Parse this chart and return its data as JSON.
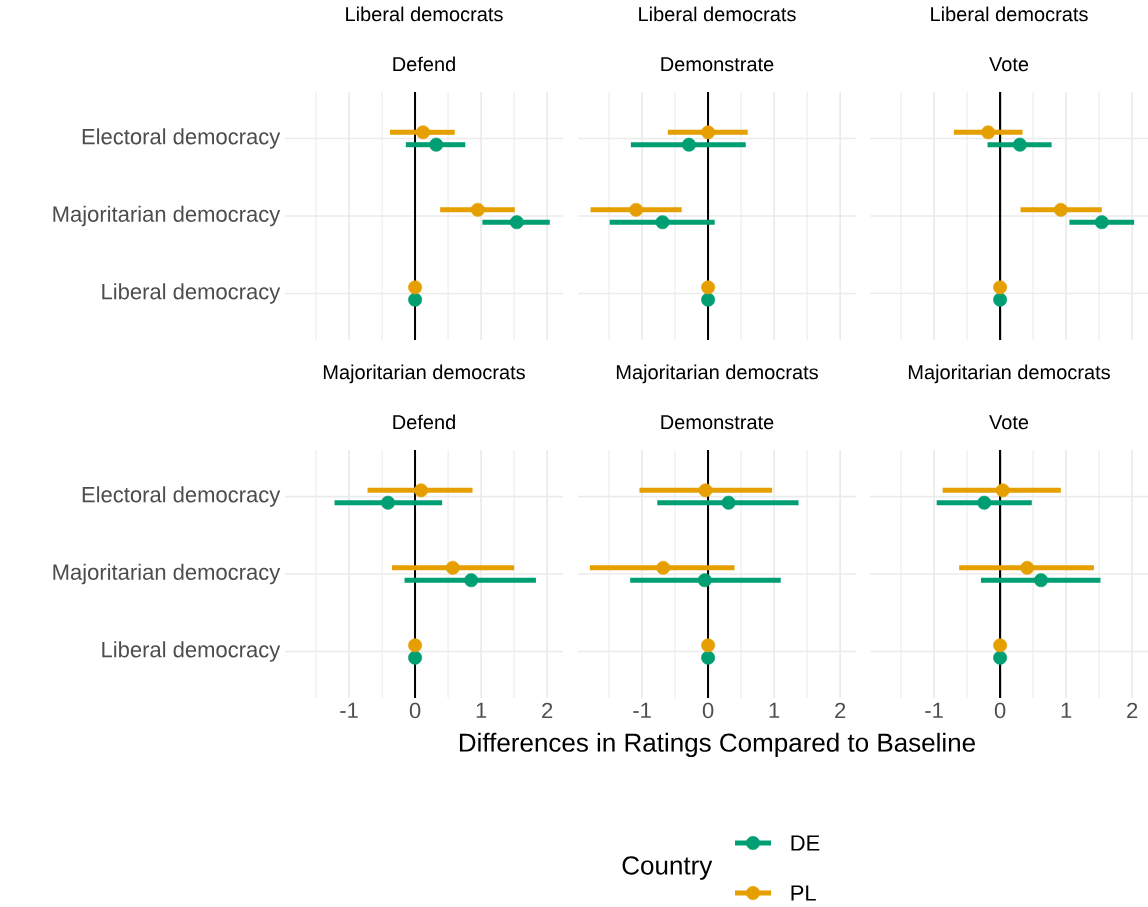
{
  "chart_data": [
    {
      "type": "scatter",
      "orientation": "horizontal",
      "title": "Liberal democrats",
      "subtitle": "Defend",
      "categories": [
        "Electoral democracy",
        "Majoritarian democracy",
        "Liberal democracy"
      ],
      "xlim": [
        -1.97,
        2.24
      ],
      "xticks": [
        {
          "value": -1.5,
          "label": null
        },
        -1,
        {
          "value": -0.5,
          "label": null
        },
        0,
        {
          "value": 0.5,
          "label": null
        },
        1,
        {
          "value": 1.5,
          "label": null
        },
        2
      ],
      "grid": true,
      "marker": "circle",
      "tick_labels": "y",
      "ref_lines": [
        {
          "axis": "x",
          "value": 0,
          "color": "#000000"
        }
      ],
      "series": [
        {
          "color": "#009e73",
          "values": [
            0.32,
            1.54,
            0
          ],
          "errors": [
            [
              -0.14,
              0.76
            ],
            [
              1.02,
              2.04
            ],
            null
          ]
        },
        {
          "color": "#e69f00",
          "values": [
            0.12,
            0.95,
            0
          ],
          "errors": [
            [
              -0.38,
              0.6
            ],
            [
              0.38,
              1.51
            ],
            null
          ]
        }
      ]
    },
    {
      "type": "scatter",
      "orientation": "horizontal",
      "title": "Liberal democrats",
      "subtitle": "Demonstrate",
      "categories": [
        null,
        null,
        null
      ],
      "xlim": [
        -1.97,
        2.24
      ],
      "xticks": [
        {
          "value": -1.5,
          "label": null
        },
        -1,
        {
          "value": -0.5,
          "label": null
        },
        0,
        {
          "value": 0.5,
          "label": null
        },
        1,
        {
          "value": 1.5,
          "label": null
        },
        2
      ],
      "grid": true,
      "marker": "circle",
      "tick_labels": false,
      "ref_lines": [
        {
          "axis": "x",
          "value": 0,
          "color": "#000000"
        }
      ],
      "series": [
        {
          "color": "#009e73",
          "values": [
            -0.29,
            -0.69,
            0
          ],
          "errors": [
            [
              -1.17,
              0.57
            ],
            [
              -1.49,
              0.1
            ],
            null
          ]
        },
        {
          "color": "#e69f00",
          "values": [
            0.0,
            -1.09,
            0
          ],
          "errors": [
            [
              -0.61,
              0.6
            ],
            [
              -1.78,
              -0.4
            ],
            null
          ]
        }
      ]
    },
    {
      "type": "scatter",
      "orientation": "horizontal",
      "title": "Liberal democrats",
      "subtitle": "Vote",
      "categories": [
        null,
        null,
        null
      ],
      "xlim": [
        -1.97,
        2.24
      ],
      "xticks": [
        {
          "value": -1.5,
          "label": null
        },
        -1,
        {
          "value": -0.5,
          "label": null
        },
        0,
        {
          "value": 0.5,
          "label": null
        },
        1,
        {
          "value": 1.5,
          "label": null
        },
        2
      ],
      "grid": true,
      "marker": "circle",
      "tick_labels": false,
      "ref_lines": [
        {
          "axis": "x",
          "value": 0,
          "color": "#000000"
        }
      ],
      "series": [
        {
          "color": "#009e73",
          "values": [
            0.3,
            1.54,
            0
          ],
          "errors": [
            [
              -0.19,
              0.78
            ],
            [
              1.05,
              2.03
            ],
            null
          ]
        },
        {
          "color": "#e69f00",
          "values": [
            -0.18,
            0.92,
            0
          ],
          "errors": [
            [
              -0.7,
              0.34
            ],
            [
              0.31,
              1.54
            ],
            null
          ]
        }
      ]
    },
    {
      "type": "scatter",
      "orientation": "horizontal",
      "title": "Majoritarian democrats",
      "subtitle": "Defend",
      "categories": [
        "Electoral democracy",
        "Majoritarian democracy",
        "Liberal democracy"
      ],
      "xlim": [
        -1.97,
        2.24
      ],
      "xticks": [
        {
          "value": -1.5,
          "label": null
        },
        -1,
        {
          "value": -0.5,
          "label": null
        },
        0,
        {
          "value": 0.5,
          "label": null
        },
        1,
        {
          "value": 1.5,
          "label": null
        },
        2
      ],
      "grid": true,
      "marker": "circle",
      "ref_lines": [
        {
          "axis": "x",
          "value": 0,
          "color": "#000000"
        }
      ],
      "series": [
        {
          "color": "#009e73",
          "values": [
            -0.41,
            0.85,
            0
          ],
          "errors": [
            [
              -1.22,
              0.41
            ],
            [
              -0.16,
              1.83
            ],
            null
          ]
        },
        {
          "color": "#e69f00",
          "values": [
            0.09,
            0.57,
            0
          ],
          "errors": [
            [
              -0.72,
              0.87
            ],
            [
              -0.35,
              1.5
            ],
            null
          ]
        }
      ]
    },
    {
      "type": "scatter",
      "orientation": "horizontal",
      "title": "Majoritarian democrats",
      "subtitle": "Demonstrate",
      "xlabel": "Differences in Ratings Compared to Baseline",
      "legend": "bottom",
      "legend_title": "Country",
      "categories": [
        null,
        null,
        null
      ],
      "xlim": [
        -1.97,
        2.24
      ],
      "xticks": [
        {
          "value": -1.5,
          "label": null
        },
        -1,
        {
          "value": -0.5,
          "label": null
        },
        0,
        {
          "value": 0.5,
          "label": null
        },
        1,
        {
          "value": 1.5,
          "label": null
        },
        2
      ],
      "grid": true,
      "marker": "circle",
      "tick_labels": "x",
      "ref_lines": [
        {
          "axis": "x",
          "value": 0,
          "color": "#000000"
        }
      ],
      "series": [
        {
          "name": "DE",
          "color": "#009e73",
          "values": [
            0.31,
            -0.05,
            0
          ],
          "errors": [
            [
              -0.77,
              1.37
            ],
            [
              -1.18,
              1.1
            ],
            null
          ]
        },
        {
          "name": "PL",
          "color": "#e69f00",
          "values": [
            -0.04,
            -0.68,
            0
          ],
          "errors": [
            [
              -1.04,
              0.97
            ],
            [
              -1.79,
              0.4
            ],
            null
          ]
        }
      ]
    },
    {
      "type": "scatter",
      "orientation": "horizontal",
      "title": "Majoritarian democrats",
      "subtitle": "Vote",
      "categories": [
        null,
        null,
        null
      ],
      "xlim": [
        -1.97,
        2.24
      ],
      "xticks": [
        {
          "value": -1.5,
          "label": null
        },
        -1,
        {
          "value": -0.5,
          "label": null
        },
        0,
        {
          "value": 0.5,
          "label": null
        },
        1,
        {
          "value": 1.5,
          "label": null
        },
        2
      ],
      "grid": true,
      "marker": "circle",
      "tick_labels": "x",
      "ref_lines": [
        {
          "axis": "x",
          "value": 0,
          "color": "#000000"
        }
      ],
      "series": [
        {
          "color": "#009e73",
          "values": [
            -0.24,
            0.62,
            0
          ],
          "errors": [
            [
              -0.96,
              0.48
            ],
            [
              -0.29,
              1.52
            ],
            null
          ]
        },
        {
          "color": "#e69f00",
          "values": [
            0.04,
            0.41,
            0
          ],
          "errors": [
            [
              -0.87,
              0.92
            ],
            [
              -0.62,
              1.42
            ],
            null
          ]
        }
      ]
    }
  ]
}
